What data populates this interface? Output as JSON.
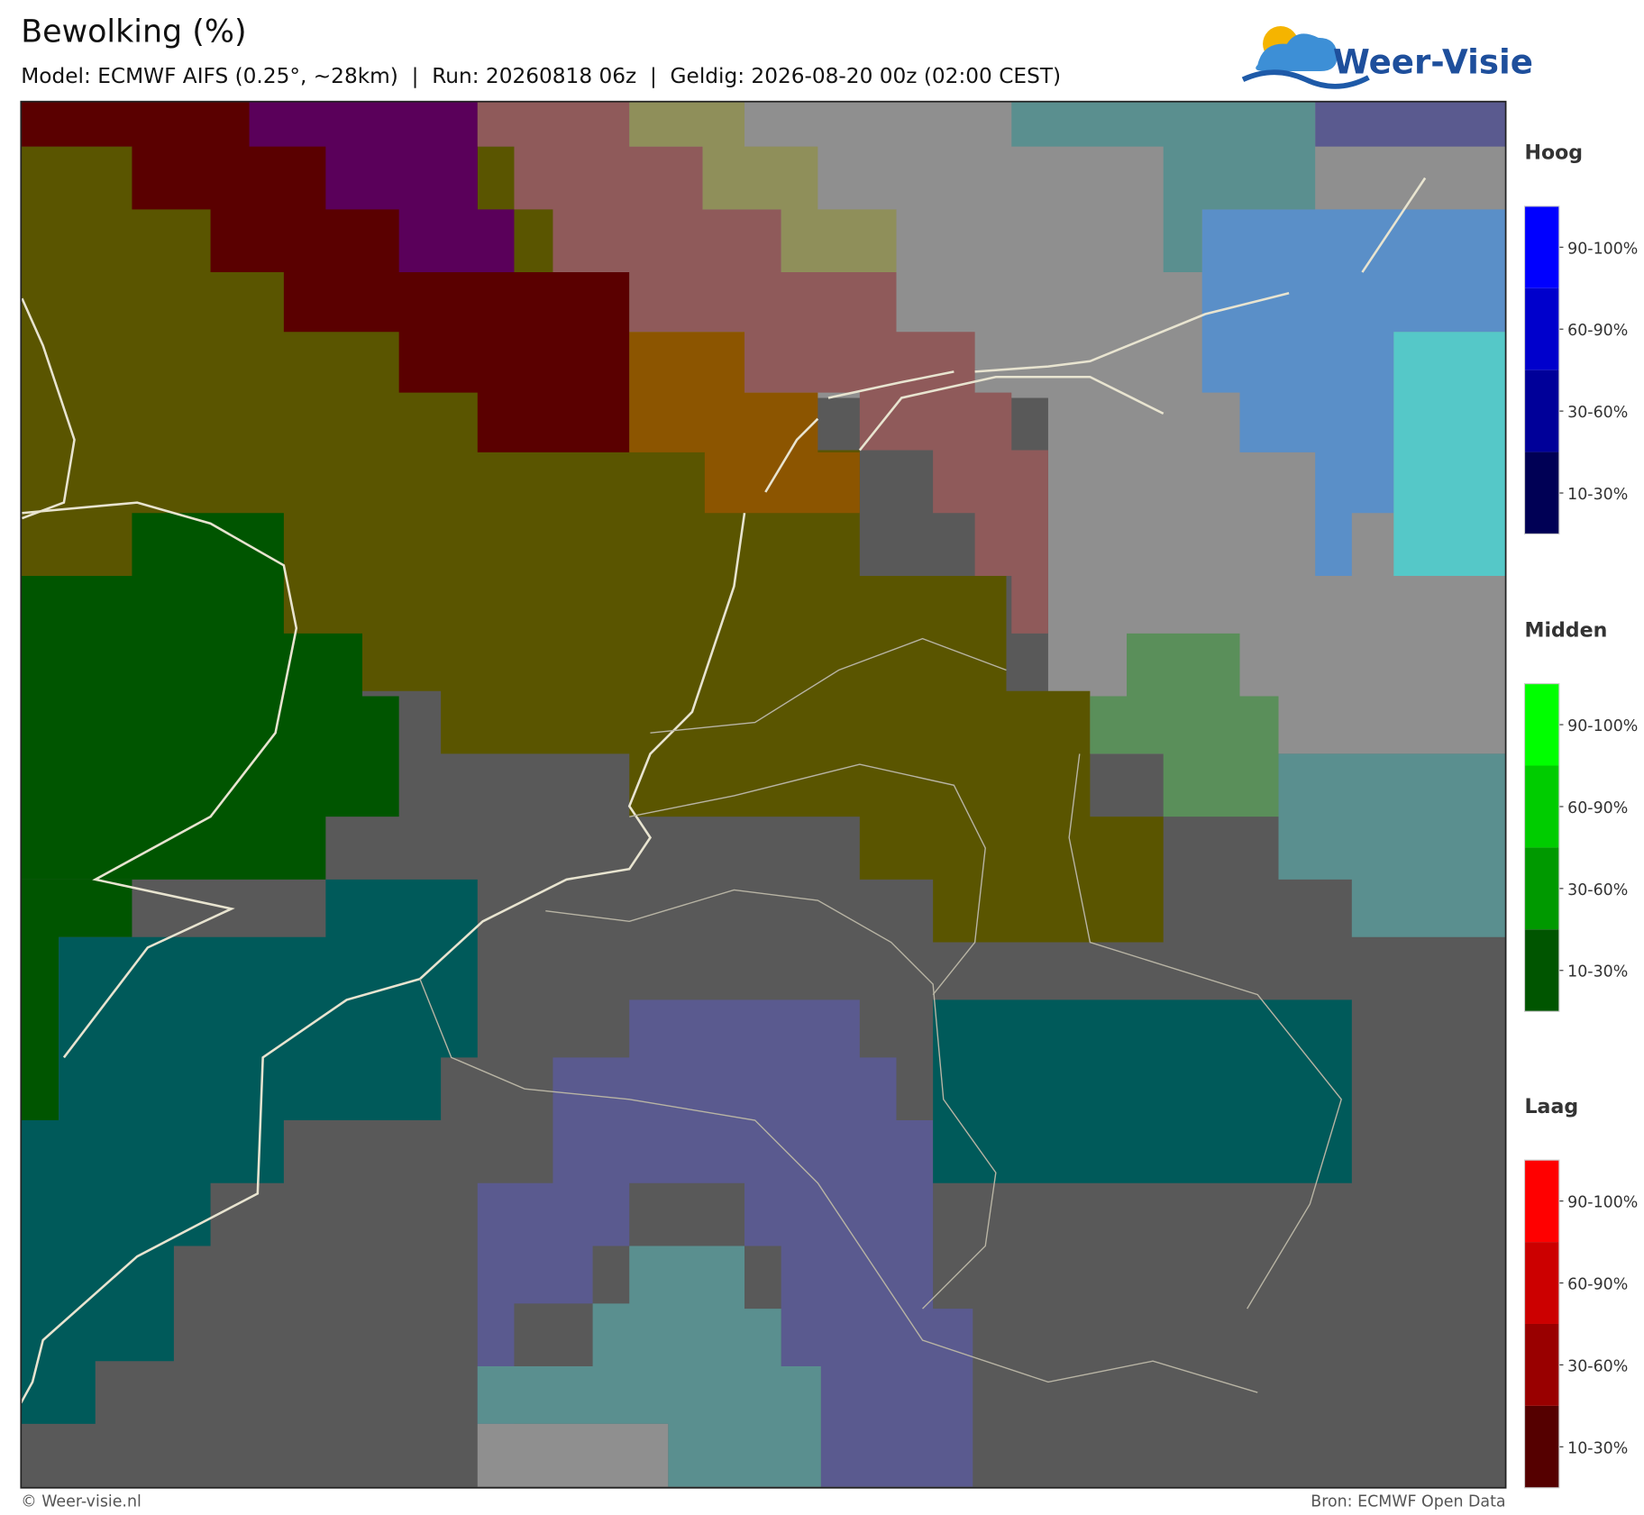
{
  "header": {
    "title": "Bewolking (%)",
    "subtitle": "Model: ECMWF AIFS (0.25°, ~28km)  |  Run: 20260818 06z  |  Geldig: 2026-08-20 00z (02:00 CEST)",
    "logo": "Weer-Visie"
  },
  "legend": {
    "groups": [
      {
        "title": "Hoog",
        "labels": [
          "90-100%",
          "60-90%",
          "30-60%",
          "10-30%"
        ]
      },
      {
        "title": "Midden",
        "labels": [
          "90-100%",
          "60-90%",
          "30-60%",
          "10-30%"
        ]
      },
      {
        "title": "Laag",
        "labels": [
          "90-100%",
          "60-90%",
          "30-60%",
          "10-30%"
        ]
      }
    ]
  },
  "footer": {
    "credit": "© Weer-visie.nl",
    "source": "Bron: ECMWF Open Data"
  }
}
